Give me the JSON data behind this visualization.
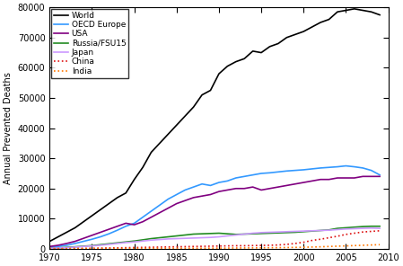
{
  "title": "",
  "ylabel": "Annual Prevented Deaths",
  "xlabel": "",
  "xlim": [
    1970,
    2010
  ],
  "ylim": [
    0,
    80000
  ],
  "yticks": [
    0,
    10000,
    20000,
    30000,
    40000,
    50000,
    60000,
    70000,
    80000
  ],
  "xticks": [
    1970,
    1975,
    1980,
    1985,
    1990,
    1995,
    2000,
    2005,
    2010
  ],
  "series": [
    {
      "name": "World",
      "color": "#000000",
      "linewidth": 1.2,
      "linestyle": "solid",
      "data_years": [
        1970,
        1971,
        1972,
        1973,
        1974,
        1975,
        1976,
        1977,
        1978,
        1979,
        1980,
        1981,
        1982,
        1983,
        1984,
        1985,
        1986,
        1987,
        1988,
        1989,
        1990,
        1991,
        1992,
        1993,
        1994,
        1995,
        1996,
        1997,
        1998,
        1999,
        2000,
        2001,
        2002,
        2003,
        2004,
        2005,
        2006,
        2007,
        2008,
        2009
      ],
      "data_values": [
        2500,
        4000,
        5500,
        7000,
        9000,
        11000,
        13000,
        15000,
        17000,
        18500,
        23000,
        27000,
        32000,
        35000,
        38000,
        41000,
        44000,
        47000,
        51000,
        52500,
        58000,
        60500,
        62000,
        63000,
        65500,
        65000,
        67000,
        68000,
        70000,
        71000,
        72000,
        73500,
        75000,
        76000,
        78500,
        79000,
        79500,
        79000,
        78500,
        77500
      ]
    },
    {
      "name": "OECD Europe",
      "color": "#3399ff",
      "linewidth": 1.2,
      "linestyle": "solid",
      "data_years": [
        1970,
        1971,
        1972,
        1973,
        1974,
        1975,
        1976,
        1977,
        1978,
        1979,
        1980,
        1981,
        1982,
        1983,
        1984,
        1985,
        1986,
        1987,
        1988,
        1989,
        1990,
        1991,
        1992,
        1993,
        1994,
        1995,
        1996,
        1997,
        1998,
        1999,
        2000,
        2001,
        2002,
        2003,
        2004,
        2005,
        2006,
        2007,
        2008,
        2009
      ],
      "data_values": [
        500,
        800,
        1200,
        1800,
        2500,
        3200,
        4000,
        5000,
        6200,
        7500,
        8500,
        10500,
        12500,
        14500,
        16500,
        18000,
        19500,
        20500,
        21500,
        21000,
        22000,
        22500,
        23500,
        24000,
        24500,
        25000,
        25200,
        25500,
        25800,
        26000,
        26200,
        26500,
        26800,
        27000,
        27200,
        27500,
        27200,
        26800,
        26000,
        24500
      ]
    },
    {
      "name": "USA",
      "color": "#800080",
      "linewidth": 1.2,
      "linestyle": "solid",
      "data_years": [
        1970,
        1971,
        1972,
        1973,
        1974,
        1975,
        1976,
        1977,
        1978,
        1979,
        1980,
        1981,
        1982,
        1983,
        1984,
        1985,
        1986,
        1987,
        1988,
        1989,
        1990,
        1991,
        1992,
        1993,
        1994,
        1995,
        1996,
        1997,
        1998,
        1999,
        2000,
        2001,
        2002,
        2003,
        2004,
        2005,
        2006,
        2007,
        2008,
        2009
      ],
      "data_values": [
        800,
        1200,
        1800,
        2500,
        3500,
        4500,
        5500,
        6500,
        7500,
        8500,
        8000,
        9000,
        10500,
        12000,
        13500,
        15000,
        16000,
        17000,
        17500,
        18000,
        19000,
        19500,
        20000,
        20000,
        20500,
        19500,
        20000,
        20500,
        21000,
        21500,
        22000,
        22500,
        23000,
        23000,
        23500,
        23500,
        23500,
        24000,
        24000,
        24000
      ]
    },
    {
      "name": "Russia/FSU15",
      "color": "#228B22",
      "linewidth": 1.2,
      "linestyle": "solid",
      "data_years": [
        1970,
        1971,
        1972,
        1973,
        1974,
        1975,
        1976,
        1977,
        1978,
        1979,
        1980,
        1981,
        1982,
        1983,
        1984,
        1985,
        1986,
        1987,
        1988,
        1989,
        1990,
        1991,
        1992,
        1993,
        1994,
        1995,
        1996,
        1997,
        1998,
        1999,
        2000,
        2001,
        2002,
        2003,
        2004,
        2005,
        2006,
        2007,
        2008,
        2009
      ],
      "data_values": [
        200,
        300,
        500,
        700,
        900,
        1100,
        1400,
        1700,
        2000,
        2300,
        2600,
        3000,
        3400,
        3700,
        4000,
        4300,
        4600,
        4900,
        5000,
        5100,
        5200,
        5000,
        4800,
        4900,
        5000,
        5100,
        5200,
        5300,
        5400,
        5500,
        5700,
        5900,
        6100,
        6300,
        6800,
        7000,
        7200,
        7400,
        7500,
        7500
      ]
    },
    {
      "name": "Japan",
      "color": "#cc99ff",
      "linewidth": 1.2,
      "linestyle": "solid",
      "data_years": [
        1970,
        1971,
        1972,
        1973,
        1974,
        1975,
        1976,
        1977,
        1978,
        1979,
        1980,
        1981,
        1982,
        1983,
        1984,
        1985,
        1986,
        1987,
        1988,
        1989,
        1990,
        1991,
        1992,
        1993,
        1994,
        1995,
        1996,
        1997,
        1998,
        1999,
        2000,
        2001,
        2002,
        2003,
        2004,
        2005,
        2006,
        2007,
        2008,
        2009
      ],
      "data_values": [
        200,
        300,
        400,
        600,
        800,
        1000,
        1200,
        1500,
        1800,
        2100,
        2300,
        2600,
        2900,
        3100,
        3300,
        3400,
        3500,
        3600,
        3700,
        3800,
        4000,
        4300,
        4600,
        4900,
        5200,
        5400,
        5500,
        5600,
        5700,
        5800,
        5900,
        6000,
        6100,
        6200,
        6400,
        6600,
        6700,
        6800,
        6900,
        6800
      ]
    },
    {
      "name": "China",
      "color": "#dd1111",
      "linewidth": 1.2,
      "linestyle": "dotted",
      "data_years": [
        1970,
        1971,
        1972,
        1973,
        1974,
        1975,
        1976,
        1977,
        1978,
        1979,
        1980,
        1981,
        1982,
        1983,
        1984,
        1985,
        1986,
        1987,
        1988,
        1989,
        1990,
        1991,
        1992,
        1993,
        1994,
        1995,
        1996,
        1997,
        1998,
        1999,
        2000,
        2001,
        2002,
        2003,
        2004,
        2005,
        2006,
        2007,
        2008,
        2009
      ],
      "data_values": [
        50,
        80,
        100,
        130,
        160,
        200,
        250,
        300,
        350,
        400,
        450,
        500,
        550,
        600,
        650,
        700,
        750,
        800,
        850,
        900,
        950,
        1000,
        1050,
        1050,
        1100,
        1150,
        1200,
        1300,
        1500,
        1800,
        2200,
        2800,
        3200,
        3700,
        4200,
        4800,
        5200,
        5600,
        5800,
        6000
      ]
    },
    {
      "name": "India",
      "color": "#ff7700",
      "linewidth": 1.2,
      "linestyle": "dotted",
      "data_years": [
        1970,
        1971,
        1972,
        1973,
        1974,
        1975,
        1976,
        1977,
        1978,
        1979,
        1980,
        1981,
        1982,
        1983,
        1984,
        1985,
        1986,
        1987,
        1988,
        1989,
        1990,
        1991,
        1992,
        1993,
        1994,
        1995,
        1996,
        1997,
        1998,
        1999,
        2000,
        2001,
        2002,
        2003,
        2004,
        2005,
        2006,
        2007,
        2008,
        2009
      ],
      "data_values": [
        50,
        60,
        70,
        80,
        90,
        100,
        110,
        120,
        130,
        140,
        150,
        160,
        170,
        180,
        190,
        200,
        210,
        220,
        230,
        240,
        250,
        270,
        290,
        310,
        330,
        350,
        380,
        410,
        450,
        500,
        550,
        620,
        700,
        800,
        900,
        1000,
        1100,
        1200,
        1300,
        1400
      ]
    }
  ]
}
